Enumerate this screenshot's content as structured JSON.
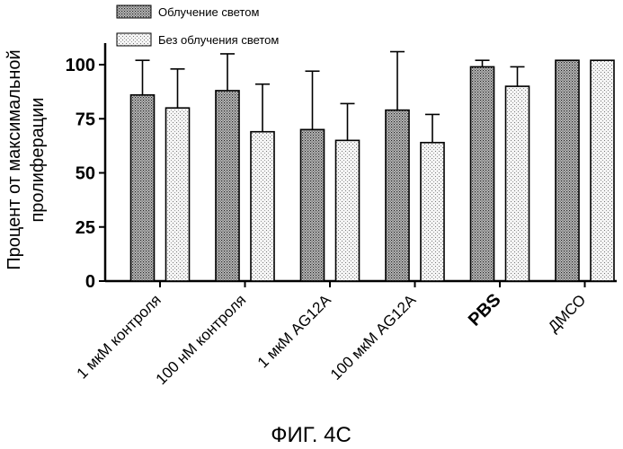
{
  "chart_data": {
    "type": "bar",
    "categories": [
      "1 мкМ контроля",
      "100 нМ контроля",
      "1 мкМ AG12A",
      "100 мкМ AG12A",
      "PBS",
      "ДМСО"
    ],
    "bold_categories": [
      "PBS"
    ],
    "series": [
      {
        "name": "Облучение светом",
        "values": [
          86,
          88,
          70,
          79,
          99,
          102
        ],
        "errors": [
          16,
          17,
          27,
          27,
          3,
          null
        ],
        "pattern": "dense-dots"
      },
      {
        "name": "Без облучения светом",
        "values": [
          80,
          69,
          65,
          64,
          90,
          102
        ],
        "errors": [
          18,
          22,
          17,
          13,
          9,
          null
        ],
        "pattern": "sparse-dots"
      }
    ],
    "ylabel_lines": [
      "Процент от максимальной",
      "пролиферации"
    ],
    "xlabel": "",
    "ylim": [
      0,
      110
    ],
    "yticks": [
      0,
      25,
      50,
      75,
      100
    ],
    "legend_position": "top",
    "grid": false
  },
  "caption": "ФИГ. 4С"
}
